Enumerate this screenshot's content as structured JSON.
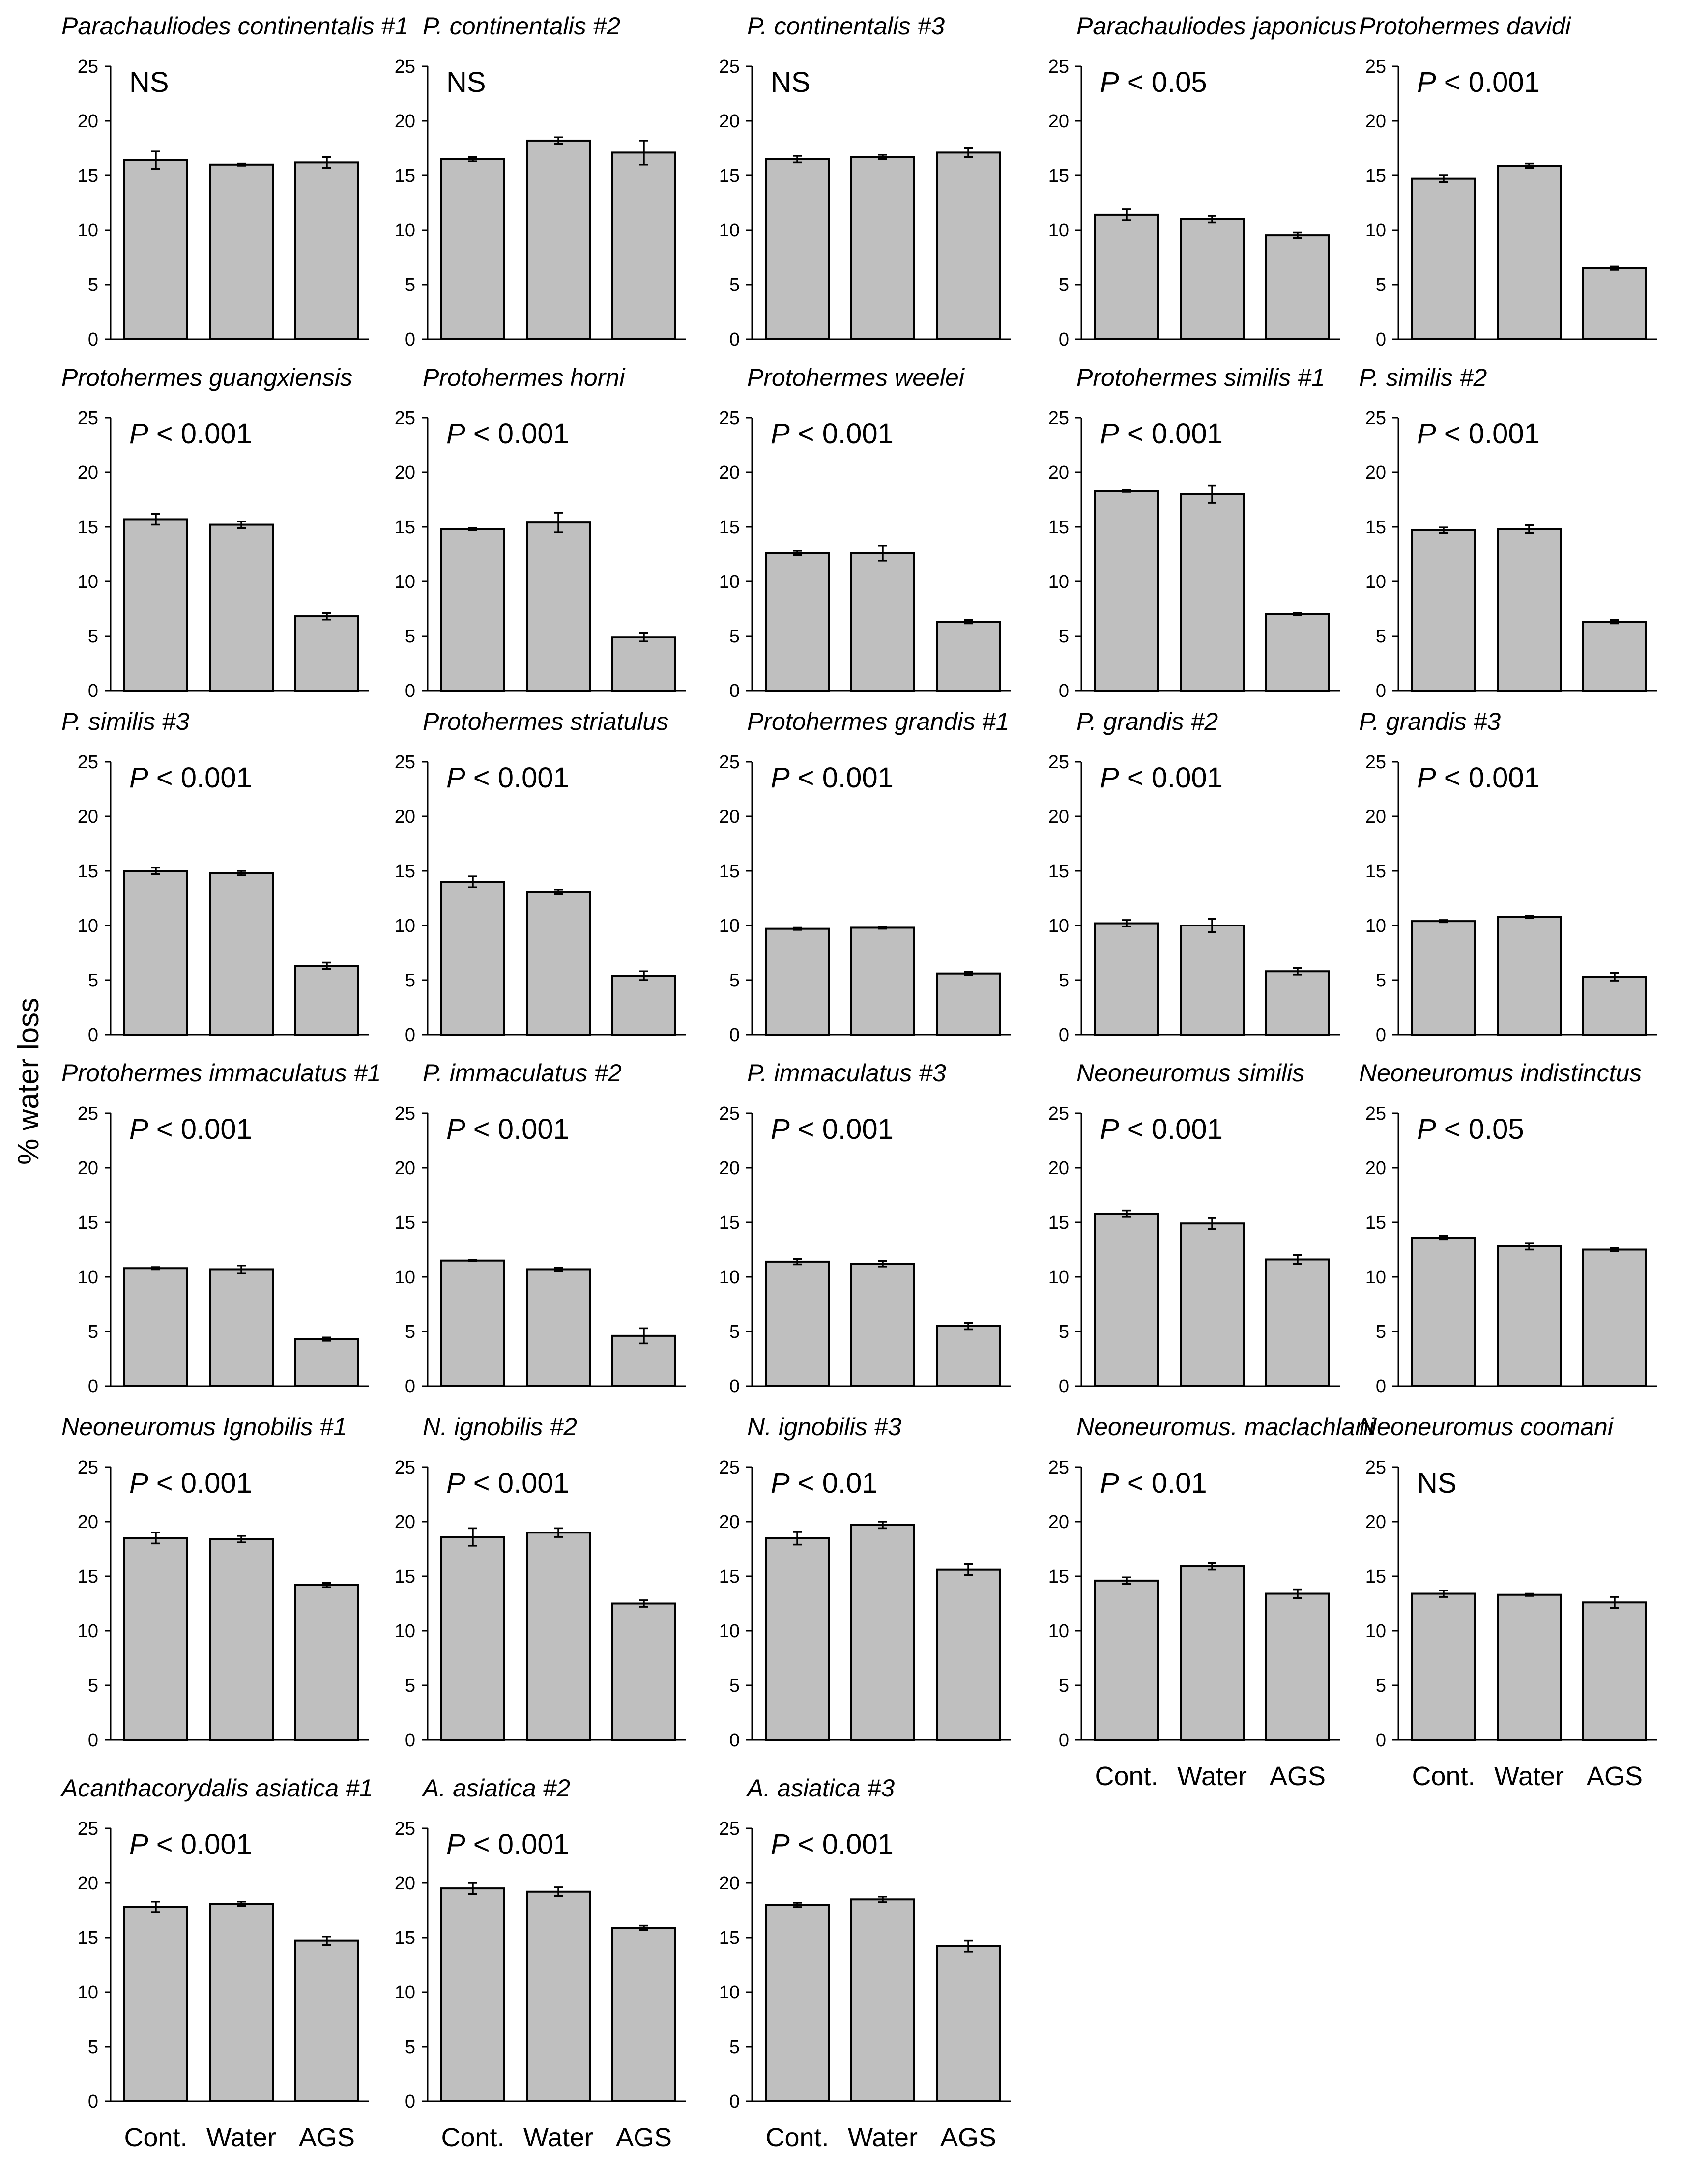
{
  "chart_data": {
    "type": "bar",
    "ylabel": "% water loss",
    "categories": [
      "Cont.",
      "Water",
      "AGS"
    ],
    "ylim": [
      0,
      25
    ],
    "yticks": [
      0,
      5,
      10,
      15,
      20,
      25
    ],
    "grid": false,
    "panels": [
      {
        "title": "Parachauliodes continentalis #1",
        "stat": "NS",
        "values": [
          16.4,
          16.0,
          16.2
        ],
        "errors": [
          0.8,
          0.1,
          0.5
        ]
      },
      {
        "title": "P. continentalis #2",
        "stat": "NS",
        "values": [
          16.5,
          18.2,
          17.1
        ],
        "errors": [
          0.2,
          0.3,
          1.1
        ]
      },
      {
        "title": "P. continentalis #3",
        "stat": "NS",
        "values": [
          16.5,
          16.7,
          17.1
        ],
        "errors": [
          0.3,
          0.2,
          0.4
        ]
      },
      {
        "title": "Parachauliodes japonicus",
        "stat": "P < 0.05",
        "values": [
          11.4,
          11.0,
          9.5
        ],
        "errors": [
          0.5,
          0.3,
          0.25
        ]
      },
      {
        "title": "Protohermes davidi",
        "stat": "P < 0.001",
        "values": [
          14.7,
          15.9,
          6.5
        ],
        "errors": [
          0.3,
          0.2,
          0.15
        ]
      },
      {
        "title": "Protohermes guangxiensis",
        "stat": "P < 0.001",
        "values": [
          15.7,
          15.2,
          6.8
        ],
        "errors": [
          0.5,
          0.3,
          0.3
        ]
      },
      {
        "title": "Protohermes horni",
        "stat": "P < 0.001",
        "values": [
          14.8,
          15.4,
          4.9
        ],
        "errors": [
          0.1,
          0.9,
          0.4
        ]
      },
      {
        "title": "Protohermes weelei",
        "stat": "P < 0.001",
        "values": [
          12.6,
          12.6,
          6.3
        ],
        "errors": [
          0.2,
          0.7,
          0.15
        ]
      },
      {
        "title": "Protohermes similis #1",
        "stat": "P < 0.001",
        "values": [
          18.3,
          18.0,
          7.0
        ],
        "errors": [
          0.1,
          0.8,
          0.1
        ]
      },
      {
        "title": "P. similis #2",
        "stat": "P < 0.001",
        "values": [
          14.7,
          14.8,
          6.3
        ],
        "errors": [
          0.25,
          0.35,
          0.15
        ]
      },
      {
        "title": "P. similis #3",
        "stat": "P < 0.001",
        "values": [
          15.0,
          14.8,
          6.3
        ],
        "errors": [
          0.3,
          0.2,
          0.3
        ]
      },
      {
        "title": "Protohermes striatulus",
        "stat": "P < 0.001",
        "values": [
          14.0,
          13.1,
          5.4
        ],
        "errors": [
          0.5,
          0.2,
          0.4
        ]
      },
      {
        "title": "Protohermes grandis #1",
        "stat": "P < 0.001",
        "values": [
          9.7,
          9.8,
          5.6
        ],
        "errors": [
          0.1,
          0.1,
          0.15
        ]
      },
      {
        "title": "P. grandis #2",
        "stat": "P < 0.001",
        "values": [
          10.2,
          10.0,
          5.8
        ],
        "errors": [
          0.3,
          0.6,
          0.3
        ]
      },
      {
        "title": "P. grandis #3",
        "stat": "P < 0.001",
        "values": [
          10.4,
          10.8,
          5.3
        ],
        "errors": [
          0.1,
          0.1,
          0.35
        ]
      },
      {
        "title": "Protohermes immaculatus #1",
        "stat": "P < 0.001",
        "values": [
          10.8,
          10.7,
          4.3
        ],
        "errors": [
          0.1,
          0.35,
          0.15
        ]
      },
      {
        "title": "P. immaculatus #2",
        "stat": "P < 0.001",
        "values": [
          11.5,
          10.7,
          4.6
        ],
        "errors": [
          0.05,
          0.15,
          0.7
        ]
      },
      {
        "title": "P. immaculatus #3",
        "stat": "P < 0.001",
        "values": [
          11.4,
          11.2,
          5.5
        ],
        "errors": [
          0.25,
          0.25,
          0.3
        ]
      },
      {
        "title": "Neoneuromus similis",
        "stat": "P < 0.001",
        "values": [
          15.8,
          14.9,
          11.6
        ],
        "errors": [
          0.3,
          0.5,
          0.4
        ]
      },
      {
        "title": "Neoneuromus indistinctus",
        "stat": "P < 0.05",
        "values": [
          13.6,
          12.8,
          12.5
        ],
        "errors": [
          0.15,
          0.3,
          0.15
        ]
      },
      {
        "title": "Neoneuromus Ignobilis #1",
        "stat": "P < 0.001",
        "values": [
          18.5,
          18.4,
          14.2
        ],
        "errors": [
          0.5,
          0.3,
          0.2
        ]
      },
      {
        "title": "N. ignobilis #2",
        "stat": "P < 0.001",
        "values": [
          18.6,
          19.0,
          12.5
        ],
        "errors": [
          0.8,
          0.4,
          0.3
        ]
      },
      {
        "title": "N. ignobilis #3",
        "stat": "P < 0.01",
        "values": [
          18.5,
          19.7,
          15.6
        ],
        "errors": [
          0.6,
          0.3,
          0.5
        ]
      },
      {
        "title": "Neoneuromus. maclachlani",
        "stat": "P < 0.01",
        "values": [
          14.6,
          15.9,
          13.4
        ],
        "errors": [
          0.3,
          0.3,
          0.4
        ]
      },
      {
        "title": "Neoneuromus coomani",
        "stat": "NS",
        "values": [
          13.4,
          13.3,
          12.6
        ],
        "errors": [
          0.3,
          0.1,
          0.5
        ]
      },
      {
        "title": "Acanthacorydalis asiatica #1",
        "stat": "P < 0.001",
        "values": [
          17.8,
          18.1,
          14.7
        ],
        "errors": [
          0.5,
          0.2,
          0.4
        ]
      },
      {
        "title": "A. asiatica #2",
        "stat": "P < 0.001",
        "values": [
          19.5,
          19.2,
          15.9
        ],
        "errors": [
          0.5,
          0.4,
          0.2
        ]
      },
      {
        "title": "A. asiatica #3",
        "stat": "P < 0.001",
        "values": [
          18.0,
          18.5,
          14.2
        ],
        "errors": [
          0.2,
          0.25,
          0.5
        ]
      }
    ]
  }
}
